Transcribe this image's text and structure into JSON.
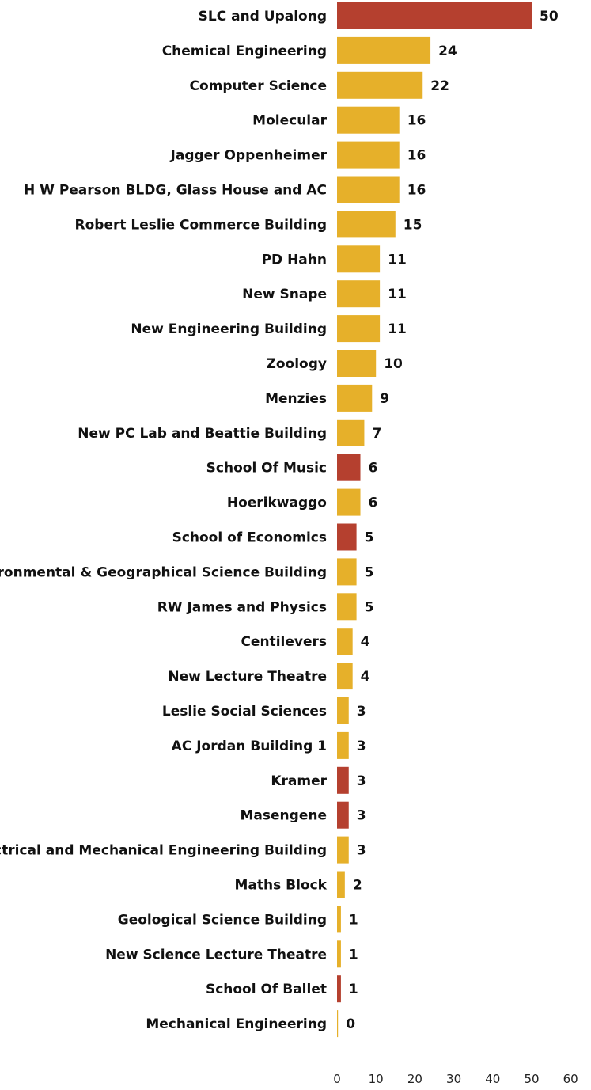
{
  "chart_data": {
    "type": "bar",
    "orientation": "horizontal",
    "title": "",
    "xlabel": "",
    "ylabel": "",
    "xlim": [
      0,
      60
    ],
    "x_ticks": [
      0,
      10,
      20,
      30,
      40,
      50,
      60
    ],
    "grid": false,
    "legend": "none",
    "colors": {
      "highlight": "#b5402f",
      "default": "#e6b02a"
    },
    "categories": [
      "SLC and Upalong",
      "Chemical Engineering",
      "Computer Science",
      "Molecular",
      "Jagger Oppenheimer",
      "H W Pearson BLDG, Glass House and AC",
      "Robert Leslie Commerce Building",
      "PD Hahn",
      "New Snape",
      "New Engineering Building",
      "Zoology",
      "Menzies",
      "New PC Lab and Beattie Building",
      "School Of Music",
      "Hoerikwaggo",
      "School of Economics",
      "Environmental & Geographical Science Building",
      "RW James and Physics",
      "Centilevers",
      "New Lecture Theatre",
      "Leslie Social Sciences",
      "AC Jordan Building 1",
      "Kramer",
      "Masengene",
      "Electrical and Mechanical Engineering Building",
      "Maths Block",
      "Geological Science Building",
      "New Science Lecture Theatre",
      "School Of Ballet",
      "Mechanical Engineering"
    ],
    "values": [
      50,
      24,
      22,
      16,
      16,
      16,
      15,
      11,
      11,
      11,
      10,
      9,
      7,
      6,
      6,
      5,
      5,
      5,
      4,
      4,
      3,
      3,
      3,
      3,
      3,
      2,
      1,
      1,
      1,
      0
    ],
    "highlighted": [
      true,
      false,
      false,
      false,
      false,
      false,
      false,
      false,
      false,
      false,
      false,
      false,
      false,
      true,
      false,
      true,
      false,
      false,
      false,
      false,
      false,
      false,
      true,
      true,
      false,
      false,
      false,
      false,
      true,
      false
    ]
  }
}
